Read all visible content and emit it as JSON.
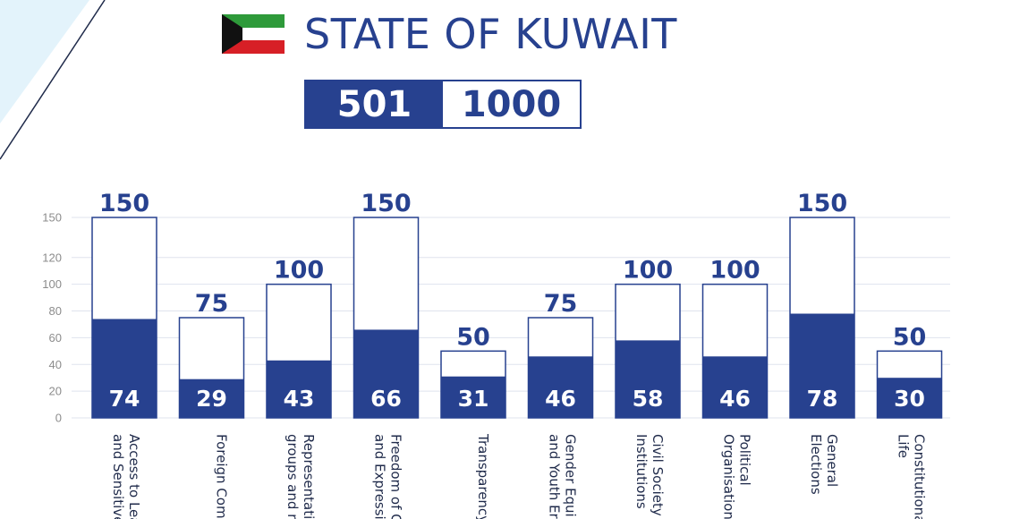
{
  "header": {
    "title": "STATE OF KUWAIT"
  },
  "score": {
    "earned": "501",
    "total": "1000"
  },
  "colors": {
    "primary": "#27418f",
    "grid": "#dfe3ee",
    "corner_fill": "#e3f3fb"
  },
  "chart_data": {
    "type": "bar",
    "categories": [
      [
        "Access to Lea",
        "and Sensitive"
      ],
      [
        "Foreign Com"
      ],
      [
        "Representati",
        "groups and n"
      ],
      [
        "Freedom of C",
        "and Expressi"
      ],
      [
        "Transparency"
      ],
      [
        "Gender Equi",
        "and Youth Er"
      ],
      [
        "Civil Society",
        "Institutions"
      ],
      [
        "Political",
        "Organisation"
      ],
      [
        "General",
        "Elections"
      ],
      [
        "Constitutiona",
        "Life"
      ]
    ],
    "series": [
      {
        "values": [
          74,
          29,
          43,
          66,
          31,
          46,
          58,
          46,
          78,
          30
        ]
      },
      {
        "values": [
          150,
          75,
          100,
          150,
          50,
          75,
          100,
          100,
          150,
          50
        ]
      }
    ],
    "ylim": [
      0,
      150
    ],
    "yticks": [
      0,
      20,
      40,
      60,
      80,
      100,
      120,
      150
    ],
    "grid": true
  }
}
